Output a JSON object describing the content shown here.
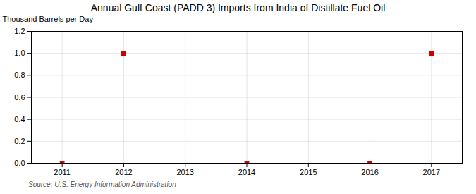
{
  "chart_data": {
    "type": "scatter",
    "title": "Annual Gulf Coast (PADD 3) Imports from India of Distillate Fuel Oil",
    "ylabel": "Thousand Barrels per Day",
    "annotations": [
      "Source: U.S. Energy Information Administration"
    ],
    "x": [
      2011,
      2012,
      2014,
      2016,
      2017
    ],
    "values": [
      0.0,
      1.0,
      0.0,
      0.0,
      1.0
    ],
    "color": "#cc0000",
    "marker": "square",
    "xlim": [
      2010.5,
      2017.5
    ],
    "xticks": [
      2011,
      2012,
      2013,
      2014,
      2015,
      2016,
      2017
    ],
    "ylim": [
      0.0,
      1.2
    ],
    "yticks": [
      {
        "value": 0.0,
        "label": "0.0"
      },
      0.2,
      0.4,
      0.6,
      0.8,
      {
        "value": 1.0,
        "label": "1.0"
      },
      1.2
    ],
    "grid": true
  }
}
